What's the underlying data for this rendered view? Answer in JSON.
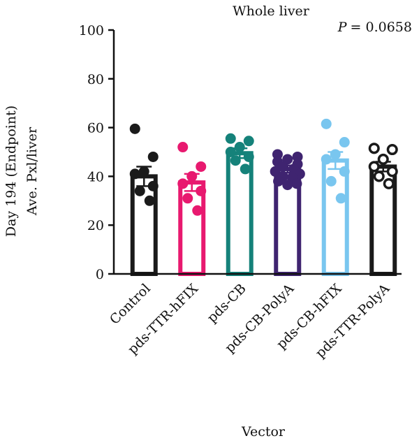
{
  "chart_data": {
    "type": "bar",
    "title": "Whole liver",
    "annotation": {
      "p_label": "P",
      "p_value": "= 0.0658"
    },
    "ylabel_line1": "Day 194 (Endpoint)",
    "ylabel_line2": "Ave. Pxl/liver",
    "xlabel": "Vector",
    "ylim": [
      0,
      100
    ],
    "yticks": [
      0,
      20,
      40,
      60,
      80,
      100
    ],
    "categories": [
      "Control",
      "pds-TTR-hFIX",
      "pds-CB",
      "pds-CB-PolyA",
      "pds-CB-hFIX",
      "pds-TTR-PolyA"
    ],
    "colors": [
      "#1a1a1a",
      "#e8196f",
      "#15827a",
      "#3f2470",
      "#79c6ef",
      "#1a1a1a"
    ],
    "marker_fill": [
      "filled",
      "filled",
      "filled",
      "filled",
      "filled",
      "open"
    ],
    "values": [
      40,
      37.5,
      49.5,
      43,
      46.5,
      44
    ],
    "sem": [
      4,
      3.5,
      2,
      1.5,
      3.5,
      2
    ],
    "points": [
      [
        59.5,
        48,
        42,
        41,
        36,
        34,
        30
      ],
      [
        52,
        44,
        40,
        37,
        34,
        31,
        26
      ],
      [
        55.5,
        54.5,
        52,
        50,
        48,
        46.5,
        43
      ],
      [
        49,
        48,
        47,
        46,
        45,
        44,
        43,
        42,
        41,
        40,
        39.5,
        38,
        37,
        36.5
      ],
      [
        61.5,
        54,
        49,
        47,
        42,
        38,
        31
      ],
      [
        51.5,
        51,
        47,
        44,
        42,
        40,
        37
      ]
    ]
  }
}
